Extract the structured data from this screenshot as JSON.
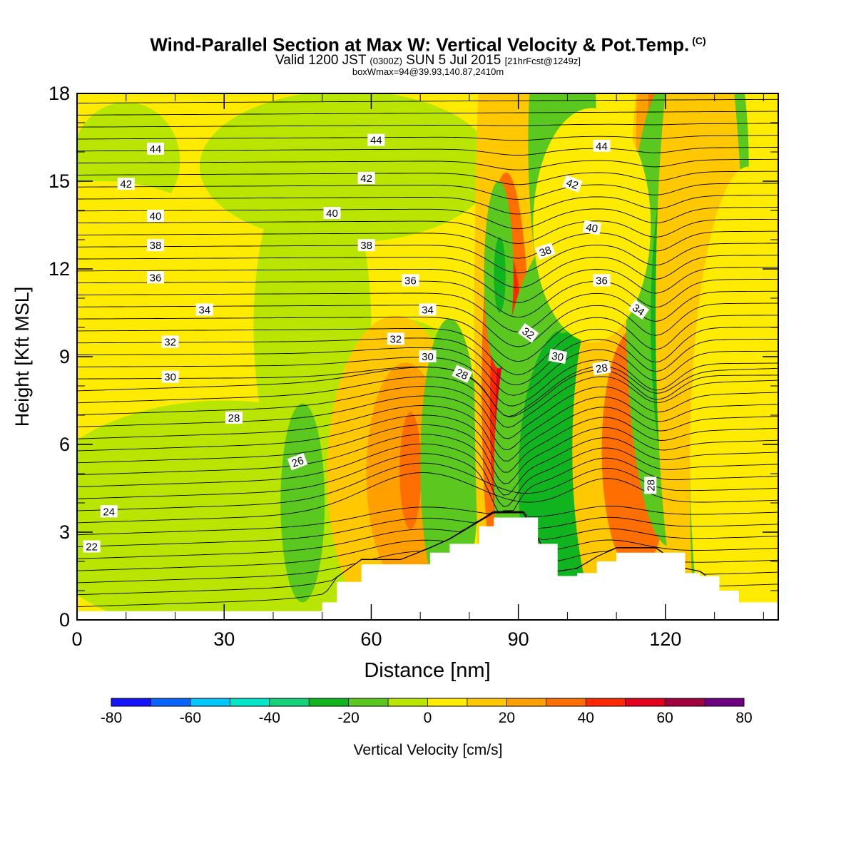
{
  "header": {
    "title": "Wind-Parallel Section at Max W: Vertical Velocity & Pot.Temp.",
    "copyright": "(C)",
    "valid_prefix": "Valid 1200 JST",
    "valid_utc": "(0300Z)",
    "valid_date": "SUN 5 Jul 2015",
    "forecast": "[21hrFcst@1249z]",
    "box_info": "boxWmax=94@39.93,140.87,2410m"
  },
  "chart_data": {
    "type": "heatmap",
    "xlabel": "Distance [nm]",
    "ylabel": "Height [Kft MSL]",
    "xlim": [
      0,
      143
    ],
    "ylim": [
      0,
      18
    ],
    "x_ticks": [
      "0",
      "30",
      "60",
      "90",
      "120"
    ],
    "y_ticks": [
      "0",
      "3",
      "6",
      "9",
      "12",
      "15",
      "18"
    ],
    "colorbar": {
      "label": "Vertical Velocity [cm/s]",
      "levels": [
        -80,
        -70,
        -60,
        -50,
        -40,
        -30,
        -20,
        -10,
        0,
        10,
        20,
        30,
        40,
        50,
        60,
        70,
        80
      ],
      "tick_labels": [
        "-80",
        "-60",
        "-40",
        "-20",
        "0",
        "20",
        "40",
        "60",
        "80"
      ],
      "colors": [
        "#1414ff",
        "#0a64ff",
        "#00c8ff",
        "#00e6c8",
        "#14d278",
        "#10b41e",
        "#5ac81e",
        "#b9e600",
        "#ffeb00",
        "#ffc800",
        "#ffa000",
        "#ff6e00",
        "#ff2800",
        "#e1001e",
        "#a0003c",
        "#6e0082"
      ]
    },
    "vertical_velocity_cells": [
      {
        "x": 10,
        "y": 15.7,
        "w": 11,
        "h": 2.0,
        "value": -3
      },
      {
        "x": 55,
        "y": 15.5,
        "w": 30,
        "h": 2.6,
        "value": -3
      },
      {
        "x": 5,
        "y": 11.5,
        "w": 30,
        "h": 3.5,
        "value": 3
      },
      {
        "x": 48,
        "y": 10.0,
        "w": 12,
        "h": 6.0,
        "value": -3
      },
      {
        "x": 30,
        "y": 3.5,
        "w": 40,
        "h": 4.0,
        "value": -4
      },
      {
        "x": 66,
        "y": 6.3,
        "w": 17,
        "h": 4.0,
        "value": -4
      },
      {
        "x": 65,
        "y": 5.0,
        "w": 14,
        "h": 5.4,
        "value": 14
      },
      {
        "x": 67,
        "y": 5.0,
        "w": 8,
        "h": 3.8,
        "value": 24
      },
      {
        "x": 68,
        "y": 5.1,
        "w": 2.2,
        "h": 2.0,
        "value": 32
      },
      {
        "x": 76,
        "y": 5.3,
        "w": 6,
        "h": 5.0,
        "value": -15
      },
      {
        "x": 46,
        "y": 4.0,
        "w": 4.5,
        "h": 3.4,
        "value": -14
      },
      {
        "x": 88,
        "y": 10.0,
        "w": 7,
        "h": 17.0,
        "value": 14
      },
      {
        "x": 87.5,
        "y": 7.8,
        "w": 5,
        "h": 7.5,
        "value": 32
      },
      {
        "x": 87.8,
        "y": 7.2,
        "w": 3.6,
        "h": 5.4,
        "value": 45
      },
      {
        "x": 87.8,
        "y": 6.8,
        "w": 2.5,
        "h": 3.4,
        "value": 58
      },
      {
        "x": 88,
        "y": 6.5,
        "w": 1.3,
        "h": 2.0,
        "value": 75
      },
      {
        "x": 86,
        "y": 11.8,
        "w": 3.0,
        "h": 3.2,
        "value": -15
      },
      {
        "x": 86.2,
        "y": 11.8,
        "w": 1.2,
        "h": 1.3,
        "value": -25
      },
      {
        "x": 100,
        "y": 4.8,
        "w": 15,
        "h": 8.5,
        "value": -13
      },
      {
        "x": 100,
        "y": 4.8,
        "w": 10,
        "h": 5.2,
        "value": -25
      },
      {
        "x": 99,
        "y": 16.3,
        "w": 7,
        "h": 6.5,
        "value": -14
      },
      {
        "x": 113,
        "y": 5.8,
        "w": 12,
        "h": 7.2,
        "value": 18
      },
      {
        "x": 114,
        "y": 5.8,
        "w": 7,
        "h": 4.2,
        "value": 32
      },
      {
        "x": 123,
        "y": 14.2,
        "w": 10,
        "h": 9.0,
        "value": 14
      },
      {
        "x": 120,
        "y": 16.5,
        "w": 6,
        "h": 5.5,
        "value": 28
      },
      {
        "x": 120,
        "y": 17.5,
        "w": 3.5,
        "h": 3.0,
        "value": 38
      },
      {
        "x": 128,
        "y": 15.5,
        "w": 9,
        "h": 6.0,
        "value": -14
      },
      {
        "x": 129,
        "y": 16.8,
        "w": 5,
        "h": 4.0,
        "value": -25
      },
      {
        "x": 129,
        "y": 17.5,
        "w": 3,
        "h": 2.0,
        "value": -38
      },
      {
        "x": 121,
        "y": 10.5,
        "w": 9,
        "h": 8.0,
        "value": -14
      },
      {
        "x": 121.5,
        "y": 10.2,
        "w": 4.5,
        "h": 5.5,
        "value": -25
      },
      {
        "x": 122,
        "y": 9.8,
        "w": 2.4,
        "h": 3.0,
        "value": -35
      },
      {
        "x": 127,
        "y": 10.5,
        "w": 9,
        "h": 12.0,
        "value": 14
      },
      {
        "x": 127,
        "y": 4.5,
        "w": 2,
        "h": 5.0,
        "value": -15
      },
      {
        "x": 137,
        "y": 5.5,
        "w": 12,
        "h": 10.0,
        "value": 4
      },
      {
        "x": 105,
        "y": 13.5,
        "w": 12,
        "h": 4.0,
        "value": 3
      }
    ],
    "terrain": [
      [
        0,
        0.3
      ],
      [
        43,
        0.3
      ],
      [
        50,
        0.6
      ],
      [
        53,
        1.3
      ],
      [
        58,
        1.9
      ],
      [
        66,
        1.9
      ],
      [
        72,
        2.3
      ],
      [
        76,
        2.6
      ],
      [
        82,
        3.2
      ],
      [
        85,
        3.5
      ],
      [
        91,
        3.5
      ],
      [
        94,
        2.6
      ],
      [
        98,
        1.5
      ],
      [
        102,
        1.6
      ],
      [
        106,
        2.0
      ],
      [
        110,
        2.3
      ],
      [
        118,
        2.3
      ],
      [
        124,
        1.6
      ],
      [
        127,
        1.5
      ],
      [
        131,
        1.0
      ],
      [
        135,
        0.6
      ],
      [
        143,
        0.3
      ]
    ],
    "theta_contour_labels": [
      {
        "label": "44",
        "x": 16,
        "y": 16.1,
        "angle": 0
      },
      {
        "label": "42",
        "x": 10,
        "y": 14.9,
        "angle": 0
      },
      {
        "label": "40",
        "x": 16,
        "y": 13.8,
        "angle": 0
      },
      {
        "label": "38",
        "x": 16,
        "y": 12.8,
        "angle": 0
      },
      {
        "label": "36",
        "x": 16,
        "y": 11.7,
        "angle": 0
      },
      {
        "label": "34",
        "x": 26,
        "y": 10.6,
        "angle": 0
      },
      {
        "label": "32",
        "x": 19,
        "y": 9.5,
        "angle": 0
      },
      {
        "label": "30",
        "x": 19,
        "y": 8.3,
        "angle": 0
      },
      {
        "label": "28",
        "x": 32,
        "y": 6.9,
        "angle": 0
      },
      {
        "label": "26",
        "x": 45,
        "y": 5.4,
        "angle": -20
      },
      {
        "label": "24",
        "x": 6.5,
        "y": 3.7,
        "angle": 0
      },
      {
        "label": "22",
        "x": 3,
        "y": 2.5,
        "angle": 0
      },
      {
        "label": "44",
        "x": 61,
        "y": 16.4,
        "angle": 0
      },
      {
        "label": "42",
        "x": 59,
        "y": 15.1,
        "angle": 0
      },
      {
        "label": "40",
        "x": 52,
        "y": 13.9,
        "angle": 0
      },
      {
        "label": "38",
        "x": 59,
        "y": 12.8,
        "angle": 0
      },
      {
        "label": "36",
        "x": 68,
        "y": 11.6,
        "angle": 0
      },
      {
        "label": "34",
        "x": 71.5,
        "y": 10.6,
        "angle": 0
      },
      {
        "label": "32",
        "x": 65,
        "y": 9.6,
        "angle": 0
      },
      {
        "label": "30",
        "x": 71.5,
        "y": 9.0,
        "angle": 0
      },
      {
        "label": "28",
        "x": 78.5,
        "y": 8.4,
        "angle": 25
      },
      {
        "label": "44",
        "x": 107,
        "y": 16.2,
        "angle": 0
      },
      {
        "label": "42",
        "x": 101,
        "y": 14.9,
        "angle": 20
      },
      {
        "label": "40",
        "x": 105,
        "y": 13.4,
        "angle": 10
      },
      {
        "label": "38",
        "x": 95.5,
        "y": 12.6,
        "angle": -20
      },
      {
        "label": "36",
        "x": 107,
        "y": 11.6,
        "angle": 0
      },
      {
        "label": "34",
        "x": 114.5,
        "y": 10.6,
        "angle": 35
      },
      {
        "label": "32",
        "x": 92,
        "y": 9.8,
        "angle": 35
      },
      {
        "label": "30",
        "x": 98,
        "y": 9.0,
        "angle": 10
      },
      {
        "label": "28",
        "x": 107,
        "y": 8.6,
        "angle": -10
      },
      {
        "label": "28",
        "x": 117,
        "y": 4.6,
        "angle": -90
      }
    ]
  }
}
